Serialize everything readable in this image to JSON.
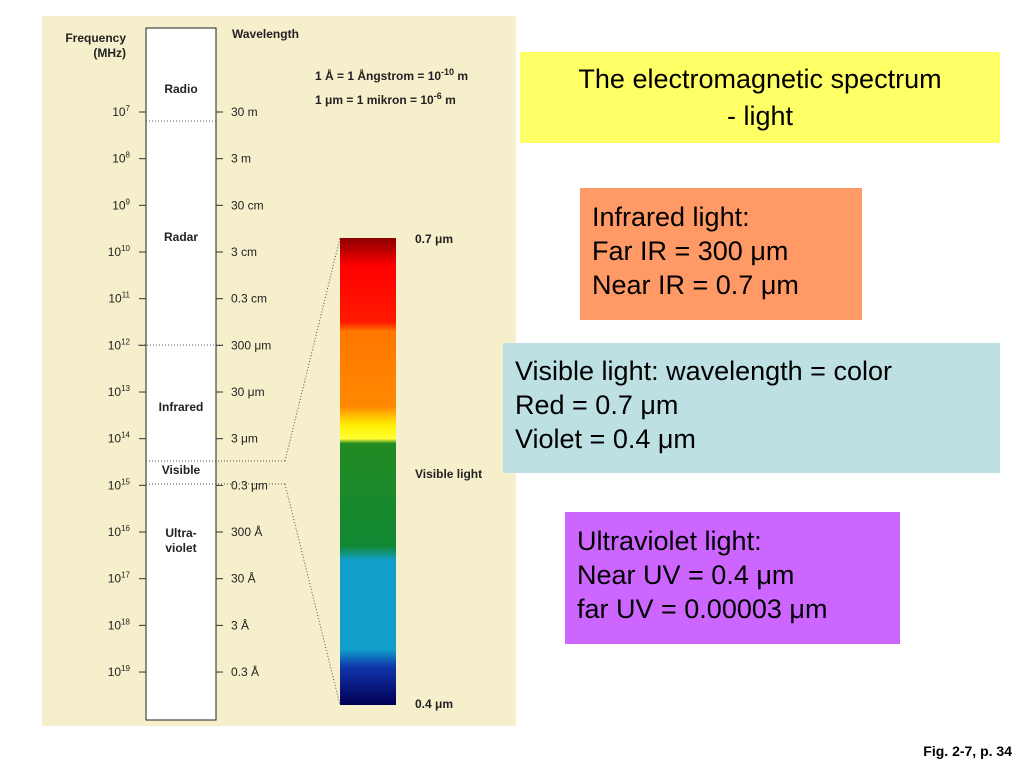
{
  "figure": {
    "frequency_header": [
      "Frequency",
      "(MHz)"
    ],
    "wavelength_header": "Wavelength",
    "definitions": [
      {
        "text": "1 Å = 1 Ångstrom = 10",
        "sup": "-10",
        "unit": " m"
      },
      {
        "text": "1 μm = 1 mikron = 10",
        "sup": "-6",
        "unit": " m"
      }
    ],
    "bands": [
      [
        "Radio"
      ],
      [
        "Radar"
      ],
      [
        "Infrared"
      ],
      [
        "Visible"
      ],
      [
        "Ultra-",
        "violet"
      ]
    ],
    "frequency_ticks": [
      {
        "base": "10",
        "exp": "7"
      },
      {
        "base": "10",
        "exp": "8"
      },
      {
        "base": "10",
        "exp": "9"
      },
      {
        "base": "10",
        "exp": "10"
      },
      {
        "base": "10",
        "exp": "11"
      },
      {
        "base": "10",
        "exp": "12"
      },
      {
        "base": "10",
        "exp": "13"
      },
      {
        "base": "10",
        "exp": "14"
      },
      {
        "base": "10",
        "exp": "15"
      },
      {
        "base": "10",
        "exp": "16"
      },
      {
        "base": "10",
        "exp": "17"
      },
      {
        "base": "10",
        "exp": "18"
      },
      {
        "base": "10",
        "exp": "19"
      }
    ],
    "wavelength_ticks": [
      "30 m",
      "3 m",
      "30 cm",
      "3 cm",
      "0.3 cm",
      "300 μm",
      "30 μm",
      "3 μm",
      "0.3 μm",
      "300 Å",
      "30 Å",
      "3 Å",
      "0.3 Å"
    ],
    "spectrum": {
      "top": "0.7 μm",
      "middle": "Visible light",
      "bottom": "0.4 μm"
    }
  },
  "slide": {
    "title": [
      "The electromagnetic spectrum",
      "- light"
    ],
    "infrared": [
      "Infrared light:",
      "Far IR = 300  μm",
      "Near IR = 0.7 μm"
    ],
    "visible": [
      "Visible light: wavelength = color",
      "Red = 0.7  μm",
      "Violet = 0.4 μm"
    ],
    "ultraviolet": [
      "Ultraviolet  light:",
      "Near UV = 0.4  μm",
      "far UV = 0.00003 μm"
    ],
    "footer": "Fig. 2-7, p. 34"
  }
}
